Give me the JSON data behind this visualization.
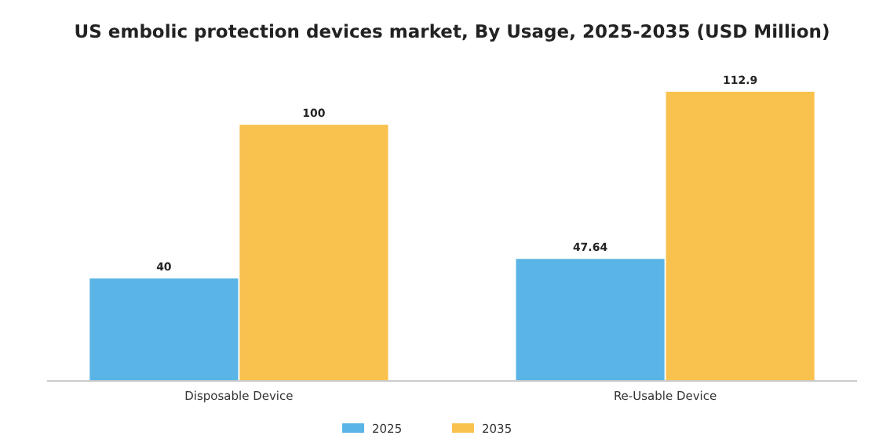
{
  "chart_data": {
    "type": "bar",
    "title": "US embolic protection devices market, By Usage, 2025-2035 (USD Million)",
    "categories": [
      "Disposable Device",
      "Re-Usable Device"
    ],
    "series": [
      {
        "name": "2025",
        "color": "#5ab4e5",
        "values": [
          40,
          47.64
        ]
      },
      {
        "name": "2035",
        "color": "#f9c24f",
        "values": [
          100,
          112.9
        ]
      }
    ],
    "data_labels": true,
    "legend": "bottom",
    "grid": false
  }
}
